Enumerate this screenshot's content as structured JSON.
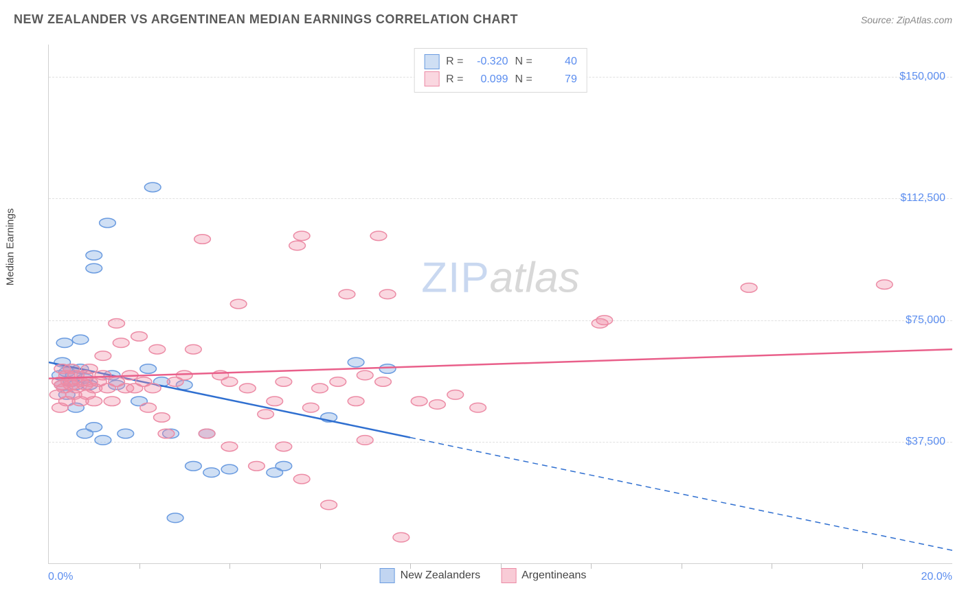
{
  "header": {
    "title": "NEW ZEALANDER VS ARGENTINEAN MEDIAN EARNINGS CORRELATION CHART",
    "source_prefix": "Source: ",
    "source_name": "ZipAtlas.com"
  },
  "watermark": {
    "part1": "ZIP",
    "part2": "atlas"
  },
  "y_axis": {
    "label": "Median Earnings"
  },
  "chart": {
    "type": "scatter",
    "xlim": [
      0,
      20
    ],
    "ylim": [
      0,
      160000
    ],
    "x_ticks_minor": [
      2,
      4,
      6,
      8,
      10,
      12,
      14,
      16,
      18
    ],
    "x_tick_labels": [
      {
        "value": 0,
        "label": "0.0%"
      },
      {
        "value": 20,
        "label": "20.0%"
      }
    ],
    "y_gridlines": [
      {
        "value": 37500,
        "label": "$37,500"
      },
      {
        "value": 75000,
        "label": "$75,000"
      },
      {
        "value": 112500,
        "label": "$112,500"
      },
      {
        "value": 150000,
        "label": "$150,000"
      }
    ],
    "background_color": "#ffffff",
    "grid_color": "#e0e0e0",
    "series": [
      {
        "name": "New Zealanders",
        "fill_color": "rgba(118,162,224,0.35)",
        "stroke_color": "#6a9be0",
        "line_color": "#2f6fd0",
        "marker_radius": 9,
        "R": "-0.320",
        "N": "40",
        "regression": {
          "x1": 0,
          "y1": 62000,
          "x2": 20,
          "y2": 4000,
          "solid_until_x": 8
        },
        "points": [
          [
            0.25,
            58000
          ],
          [
            0.3,
            62000
          ],
          [
            0.3,
            55000
          ],
          [
            0.35,
            68000
          ],
          [
            0.4,
            59000
          ],
          [
            0.4,
            52000
          ],
          [
            0.5,
            60000
          ],
          [
            0.5,
            56000
          ],
          [
            0.55,
            58000
          ],
          [
            0.6,
            55000
          ],
          [
            0.6,
            48000
          ],
          [
            0.7,
            60000
          ],
          [
            0.7,
            69000
          ],
          [
            0.8,
            57000
          ],
          [
            0.8,
            40000
          ],
          [
            0.9,
            55000
          ],
          [
            1.0,
            95000
          ],
          [
            1.0,
            91000
          ],
          [
            1.0,
            42000
          ],
          [
            1.2,
            38000
          ],
          [
            1.3,
            105000
          ],
          [
            1.4,
            58000
          ],
          [
            1.5,
            55000
          ],
          [
            1.7,
            40000
          ],
          [
            2.0,
            50000
          ],
          [
            2.2,
            60000
          ],
          [
            2.3,
            116000
          ],
          [
            2.5,
            56000
          ],
          [
            2.7,
            40000
          ],
          [
            2.8,
            14000
          ],
          [
            3.0,
            55000
          ],
          [
            3.2,
            30000
          ],
          [
            3.5,
            40000
          ],
          [
            3.6,
            28000
          ],
          [
            4.0,
            29000
          ],
          [
            5.0,
            28000
          ],
          [
            5.2,
            30000
          ],
          [
            6.2,
            45000
          ],
          [
            6.8,
            62000
          ],
          [
            7.5,
            60000
          ]
        ]
      },
      {
        "name": "Argentineans",
        "fill_color": "rgba(240,140,165,0.35)",
        "stroke_color": "#ec8ba5",
        "line_color": "#e95f8a",
        "marker_radius": 9,
        "R": "0.099",
        "N": "79",
        "regression": {
          "x1": 0,
          "y1": 57000,
          "x2": 20,
          "y2": 66000,
          "solid_until_x": 20
        },
        "points": [
          [
            0.2,
            52000
          ],
          [
            0.25,
            56000
          ],
          [
            0.25,
            48000
          ],
          [
            0.3,
            55000
          ],
          [
            0.3,
            60000
          ],
          [
            0.35,
            54000
          ],
          [
            0.4,
            58000
          ],
          [
            0.4,
            50000
          ],
          [
            0.45,
            56000
          ],
          [
            0.5,
            55000
          ],
          [
            0.5,
            60000
          ],
          [
            0.55,
            52000
          ],
          [
            0.6,
            58000
          ],
          [
            0.6,
            54000
          ],
          [
            0.7,
            56000
          ],
          [
            0.7,
            50000
          ],
          [
            0.8,
            58000
          ],
          [
            0.8,
            55000
          ],
          [
            0.85,
            52000
          ],
          [
            0.9,
            56000
          ],
          [
            0.9,
            60000
          ],
          [
            1.0,
            54000
          ],
          [
            1.0,
            50000
          ],
          [
            1.1,
            56000
          ],
          [
            1.2,
            58000
          ],
          [
            1.2,
            64000
          ],
          [
            1.3,
            54000
          ],
          [
            1.4,
            50000
          ],
          [
            1.5,
            74000
          ],
          [
            1.5,
            56000
          ],
          [
            1.6,
            68000
          ],
          [
            1.7,
            54000
          ],
          [
            1.8,
            58000
          ],
          [
            1.9,
            54000
          ],
          [
            2.0,
            70000
          ],
          [
            2.1,
            56000
          ],
          [
            2.2,
            48000
          ],
          [
            2.3,
            54000
          ],
          [
            2.4,
            66000
          ],
          [
            2.5,
            45000
          ],
          [
            2.6,
            40000
          ],
          [
            2.8,
            56000
          ],
          [
            3.0,
            58000
          ],
          [
            3.2,
            66000
          ],
          [
            3.4,
            100000
          ],
          [
            3.5,
            40000
          ],
          [
            3.8,
            58000
          ],
          [
            4.0,
            56000
          ],
          [
            4.0,
            36000
          ],
          [
            4.2,
            80000
          ],
          [
            4.4,
            54000
          ],
          [
            4.6,
            30000
          ],
          [
            4.8,
            46000
          ],
          [
            5.0,
            50000
          ],
          [
            5.2,
            56000
          ],
          [
            5.2,
            36000
          ],
          [
            5.5,
            98000
          ],
          [
            5.6,
            101000
          ],
          [
            5.6,
            26000
          ],
          [
            5.8,
            48000
          ],
          [
            6.0,
            54000
          ],
          [
            6.2,
            18000
          ],
          [
            6.4,
            56000
          ],
          [
            6.6,
            83000
          ],
          [
            6.8,
            50000
          ],
          [
            7.0,
            38000
          ],
          [
            7.0,
            58000
          ],
          [
            7.3,
            101000
          ],
          [
            7.4,
            56000
          ],
          [
            7.5,
            83000
          ],
          [
            7.8,
            8000
          ],
          [
            8.2,
            50000
          ],
          [
            8.6,
            49000
          ],
          [
            9.0,
            52000
          ],
          [
            9.5,
            48000
          ],
          [
            12.2,
            74000
          ],
          [
            12.3,
            75000
          ],
          [
            15.5,
            85000
          ],
          [
            18.5,
            86000
          ]
        ]
      }
    ]
  },
  "legend_top_labels": {
    "R": "R =",
    "N": "N ="
  },
  "legend_bottom": [
    {
      "name": "New Zealanders",
      "fill": "rgba(118,162,224,0.45)",
      "border": "#6a9be0"
    },
    {
      "name": "Argentineans",
      "fill": "rgba(240,140,165,0.45)",
      "border": "#ec8ba5"
    }
  ]
}
